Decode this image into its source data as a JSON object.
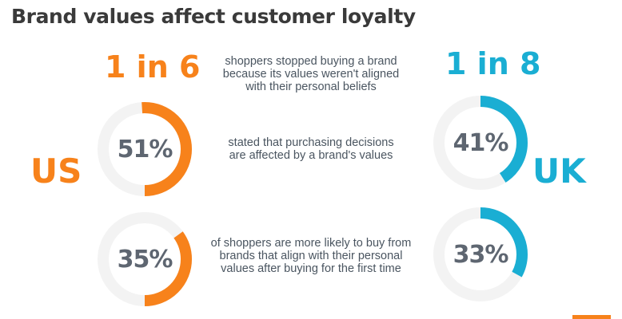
{
  "title": "Brand values affect customer loyalty",
  "colors": {
    "us": "#f7821b",
    "uk": "#1aaed3",
    "track": "#f3f3f3",
    "percent_text": "#5e6671",
    "caption_text": "#4a5560",
    "title_text": "#3a3a3a"
  },
  "countries": {
    "us": "US",
    "uk": "UK"
  },
  "stats": {
    "stopped_buying": {
      "us": "1 in 6",
      "uk": "1 in 8",
      "caption_lines": [
        "shoppers stopped buying a brand",
        "because its values weren't aligned",
        "with their personal beliefs"
      ]
    },
    "purchase_decisions": {
      "us": "51%",
      "uk": "41%",
      "caption_lines": [
        "stated that purchasing decisions",
        "are affected by a brand's values"
      ]
    },
    "likely_to_buy": {
      "us": "35%",
      "uk": "33%",
      "caption_lines": [
        "of shoppers are more likely to buy from",
        "brands that align with their personal",
        "values after buying for the first time"
      ]
    }
  },
  "chart_data": {
    "type": "pie",
    "title": "Brand values affect customer loyalty",
    "series": [
      {
        "name": "US",
        "values": [
          51,
          35
        ]
      },
      {
        "name": "UK",
        "values": [
          41,
          33
        ]
      }
    ],
    "categories": [
      "stated that purchasing decisions are affected by a brand's values",
      "of shoppers are more likely to buy from brands that align with their personal values after buying for the first time"
    ],
    "donuts": [
      {
        "country": "US",
        "value": 51,
        "label": "51%"
      },
      {
        "country": "UK",
        "value": 41,
        "label": "41%"
      },
      {
        "country": "US",
        "value": 35,
        "label": "35%"
      },
      {
        "country": "UK",
        "value": 33,
        "label": "33%"
      }
    ]
  }
}
